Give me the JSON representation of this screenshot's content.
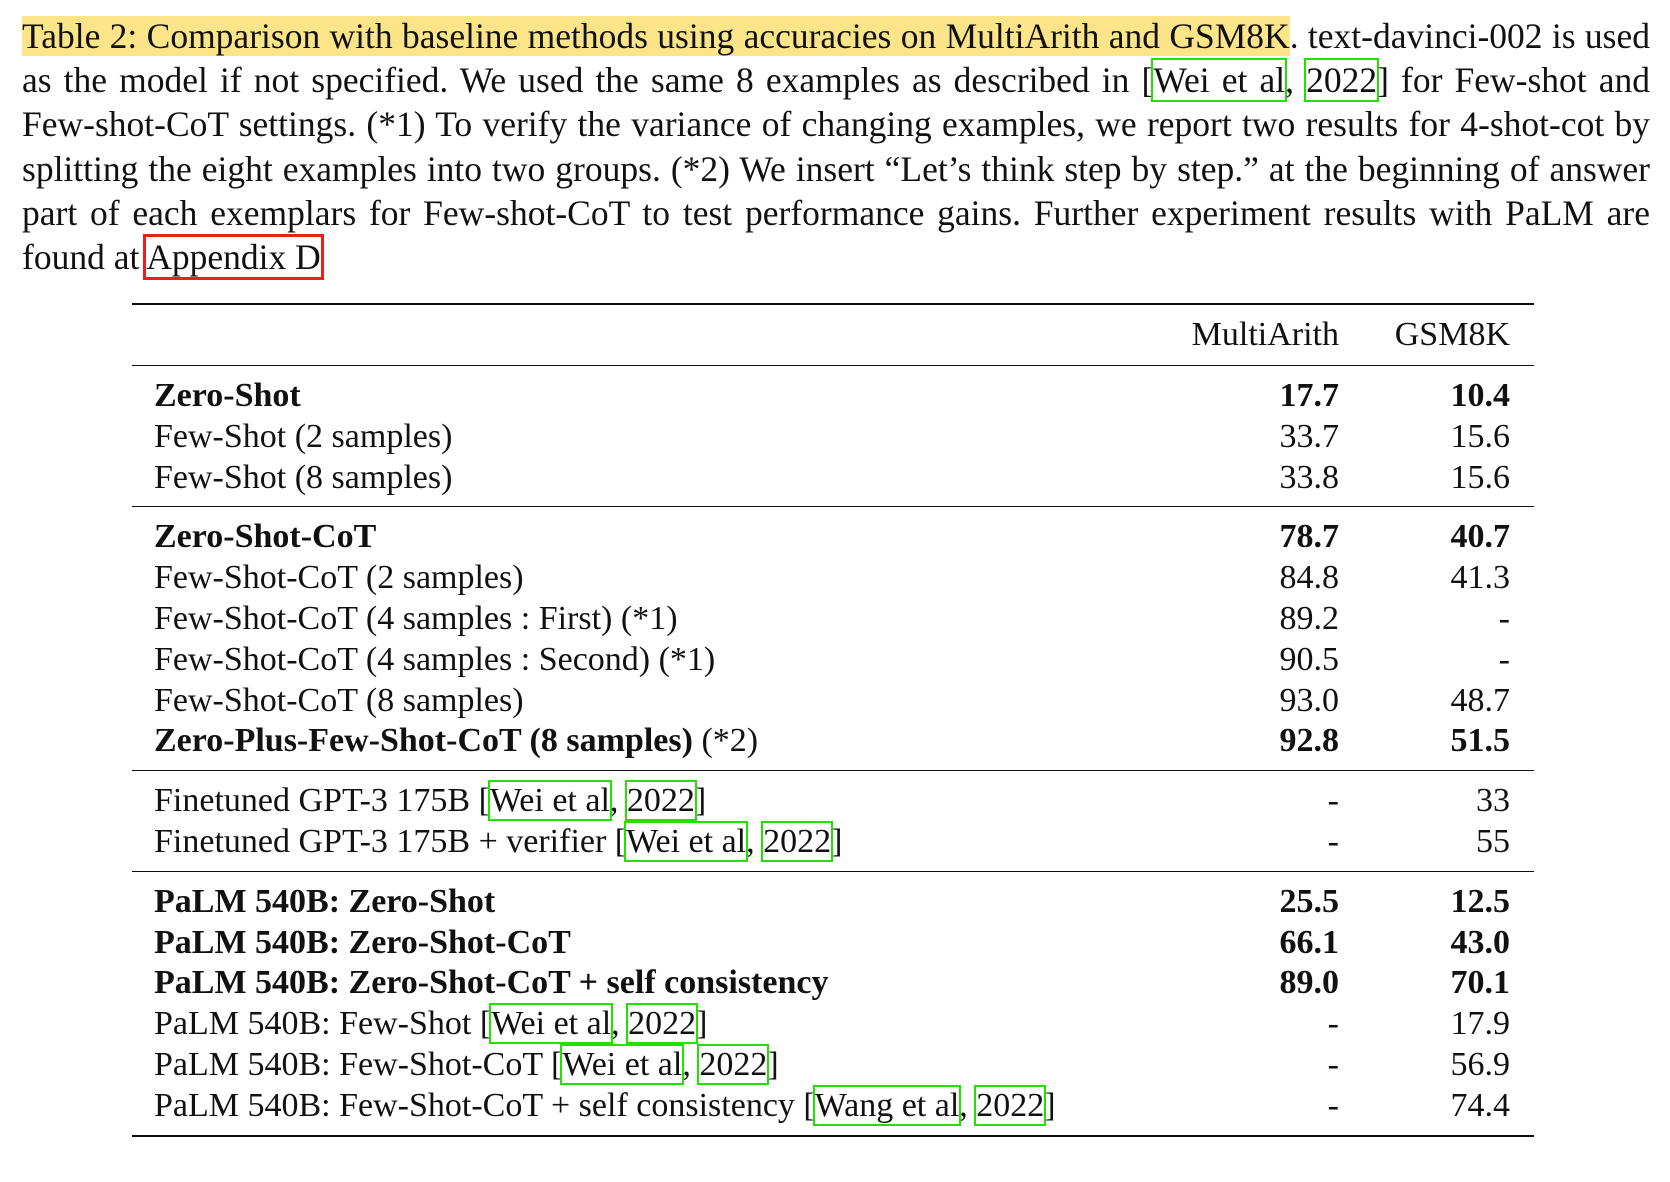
{
  "caption": {
    "label": "Table 2: Comparison with baseline methods using accuracies on MultiArith and GSM8K",
    "t1": ". text-davinci-002 is used as the model if not specified. We used the same 8 examples as described in [",
    "cite_wei": "Wei et al",
    "t2": ", ",
    "cite_year": "2022",
    "t3": "] for Few-shot and Few-shot-CoT settings. (*1) To verify the variance of changing examples, we report two results for 4-shot-cot by splitting the eight examples into two groups. (*2) We insert “Let’s think step by step.” at the beginning of answer part of each exemplars for Few-shot-CoT to test performance gains. Further experiment results with PaLM are found at ",
    "appendix": "Appendix D"
  },
  "table": {
    "columns": [
      "MultiArith",
      "GSM8K"
    ],
    "groups": [
      {
        "rows": [
          {
            "name": "Zero-Shot",
            "multiarith": "17.7",
            "gsm8k": "10.4"
          },
          {
            "name": "Few-Shot (2 samples)",
            "multiarith": "33.7",
            "gsm8k": "15.6"
          },
          {
            "name": "Few-Shot (8 samples)",
            "multiarith": "33.8",
            "gsm8k": "15.6"
          }
        ]
      },
      {
        "rows": [
          {
            "name": "Zero-Shot-CoT",
            "multiarith": "78.7",
            "gsm8k": "40.7"
          },
          {
            "name": "Few-Shot-CoT (2 samples)",
            "multiarith": "84.8",
            "gsm8k": "41.3"
          },
          {
            "name": "Few-Shot-CoT (4 samples : First) (*1)",
            "multiarith": "89.2",
            "gsm8k": "-"
          },
          {
            "name": "Few-Shot-CoT (4 samples : Second) (*1)",
            "multiarith": "90.5",
            "gsm8k": "-"
          },
          {
            "name": "Few-Shot-CoT (8 samples)",
            "multiarith": "93.0",
            "gsm8k": "48.7"
          },
          {
            "name": "Zero-Plus-Few-Shot-CoT (8 samples)",
            "suffix": " (*2)",
            "multiarith": "92.8",
            "gsm8k": "51.5"
          }
        ]
      },
      {
        "rows": [
          {
            "name": "Finetuned GPT-3 175B [",
            "cite_author": "Wei et al",
            "cite_sep": ", ",
            "cite_year": "2022",
            "cite_end": "]",
            "multiarith": "-",
            "gsm8k": "33"
          },
          {
            "name": "Finetuned GPT-3 175B + verifier [",
            "cite_author": "Wei et al",
            "cite_sep": ", ",
            "cite_year": "2022",
            "cite_end": "]",
            "multiarith": "-",
            "gsm8k": "55"
          }
        ]
      },
      {
        "rows": [
          {
            "name": "PaLM 540B: Zero-Shot",
            "multiarith": "25.5",
            "gsm8k": "12.5"
          },
          {
            "name": "PaLM 540B: Zero-Shot-CoT",
            "multiarith": "66.1",
            "gsm8k": "43.0"
          },
          {
            "name": "PaLM 540B: Zero-Shot-CoT + self consistency",
            "multiarith": "89.0",
            "gsm8k": "70.1"
          },
          {
            "name": "PaLM 540B: Few-Shot [",
            "cite_author": "Wei et al",
            "cite_sep": ", ",
            "cite_year": "2022",
            "cite_end": "]",
            "multiarith": "-",
            "gsm8k": "17.9"
          },
          {
            "name": "PaLM 540B: Few-Shot-CoT [",
            "cite_author": "Wei et al",
            "cite_sep": ", ",
            "cite_year": "2022",
            "cite_end": "]",
            "multiarith": "-",
            "gsm8k": "56.9"
          },
          {
            "name": "PaLM 540B: Few-Shot-CoT + self consistency [",
            "cite_author": "Wang et al",
            "cite_sep": ", ",
            "cite_year": "2022",
            "cite_end": "]",
            "multiarith": "-",
            "gsm8k": "74.4"
          }
        ]
      }
    ]
  }
}
